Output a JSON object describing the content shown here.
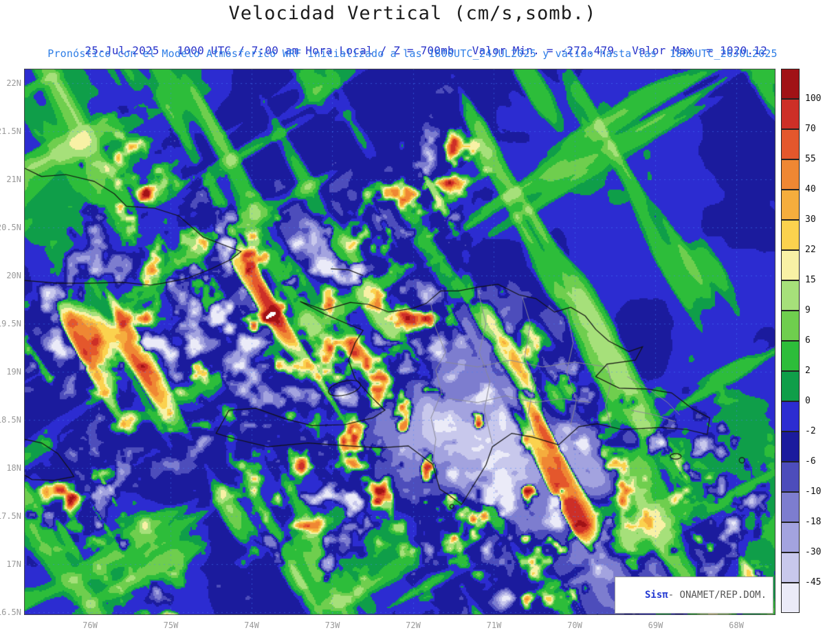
{
  "header": {
    "title": "Velocidad Vertical (cm/s,somb.)",
    "line1_date": "25-Jul-2025",
    "line1_time": "1000 UTC / 7:00 am Hora Local / Z = 700mb",
    "line1_min": "Valor Min. = -272.479",
    "line1_max": "Valor Max. = 1020.12",
    "line2": "Pronóstico con el Modelo Atmósferico WRF inicializado a las 1800UTC_24JUL2025 y válido hasta las  1800UTC_26JUL2025"
  },
  "attribution": {
    "brand": "Sisπ",
    "text": "- ONAMET/REP.DOM."
  },
  "colors": {
    "title": "#1c1c1c",
    "subtitle1": "#2a33c9",
    "subtitle2": "#2d7de6",
    "axis_label": "#999999",
    "grid": "rgba(70,130,255,0.5)",
    "coastline": "#111111",
    "province": "#8a8a96"
  },
  "axes": {
    "y_ticks": [
      {
        "label": "22N",
        "lat": 22
      },
      {
        "label": "21.5N",
        "lat": 21.5
      },
      {
        "label": "21N",
        "lat": 21
      },
      {
        "label": "20.5N",
        "lat": 20.5
      },
      {
        "label": "20N",
        "lat": 20
      },
      {
        "label": "19.5N",
        "lat": 19.5
      },
      {
        "label": "19N",
        "lat": 19
      },
      {
        "label": "18.5N",
        "lat": 18.5
      },
      {
        "label": "18N",
        "lat": 18
      },
      {
        "label": "17.5N",
        "lat": 17.5
      },
      {
        "label": "17N",
        "lat": 17
      },
      {
        "label": "16.5N",
        "lat": 16.5
      }
    ],
    "x_ticks": [
      {
        "label": "76W",
        "lon": 76
      },
      {
        "label": "75W",
        "lon": 75
      },
      {
        "label": "74W",
        "lon": 74
      },
      {
        "label": "73W",
        "lon": 73
      },
      {
        "label": "72W",
        "lon": 72
      },
      {
        "label": "71W",
        "lon": 71
      },
      {
        "label": "70W",
        "lon": 70
      },
      {
        "label": "69W",
        "lon": 69
      },
      {
        "label": "68W",
        "lon": 68
      }
    ]
  },
  "colorbar": {
    "labels": [
      "100",
      "70",
      "55",
      "40",
      "30",
      "22",
      "15",
      "9",
      "6",
      "2",
      "0",
      "-2",
      "-6",
      "-10",
      "-18",
      "-30",
      "-45"
    ]
  },
  "chart_data": {
    "type": "heatmap",
    "subtype": "filled-contour-weather-map",
    "variable": "Velocidad Vertical",
    "units": "cm/s",
    "shading_note": "somb.",
    "pressure_level": "700mb",
    "valid_datetime": "25-Jul-2025 1000 UTC / 7:00 am Hora Local",
    "value_min": -272.479,
    "value_max": 1020.12,
    "model": "WRF",
    "initialized": "1800UTC_24JUL2025",
    "valid_until": "1800UTC_26JUL2025",
    "levels": [
      100,
      70,
      55,
      40,
      30,
      22,
      15,
      9,
      6,
      2,
      0,
      -2,
      -6,
      -10,
      -18,
      -30,
      -45
    ],
    "colors": [
      "#a11216",
      "#cd2f27",
      "#e4572c",
      "#ef8733",
      "#f5ad3d",
      "#fbd24e",
      "#f8f1a5",
      "#a6e07a",
      "#6fce4e",
      "#2dbd3a",
      "#0f9e49",
      "#2c2cd1",
      "#1b1b9d",
      "#4d4dbb",
      "#7d7dcf",
      "#a3a3df",
      "#c8c8ec",
      "#ebebf8"
    ],
    "lon_deg_west_range": [
      76.82,
      67.52
    ],
    "lat_deg_north_range": [
      16.47,
      22.15
    ]
  }
}
